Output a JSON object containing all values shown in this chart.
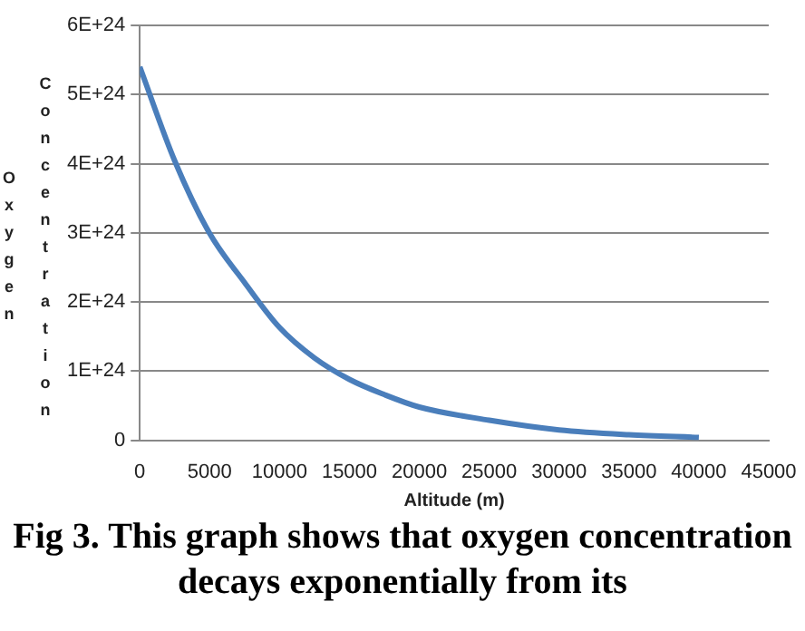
{
  "chart_data": {
    "type": "line",
    "xlabel": "Altitude (m)",
    "ylabel": "Oxygen Concentration",
    "x": [
      0,
      2500,
      5000,
      7500,
      10000,
      12500,
      15000,
      17500,
      20000,
      25000,
      30000,
      35000,
      40000
    ],
    "series": [
      {
        "color": "#4a7ebb",
        "values": [
          5.4e+24,
          4.04e+24,
          2.99e+24,
          2.28e+24,
          1.63e+24,
          1.19e+24,
          8.8e+23,
          6.6e+23,
          4.8e+23,
          2.9e+23,
          1.5e+23,
          8e+22,
          4e+22
        ]
      }
    ],
    "xlim": [
      0,
      45000
    ],
    "xticks": [
      0,
      5000,
      10000,
      15000,
      20000,
      25000,
      30000,
      35000,
      40000,
      45000
    ],
    "ylim": [
      0,
      6e+24
    ],
    "yticks": [
      0,
      {
        "value": 1e+24,
        "label": "1E+24"
      },
      {
        "value": 2e+24,
        "label": "2E+24"
      },
      {
        "value": 3e+24,
        "label": "3E+24"
      },
      {
        "value": 4e+24,
        "label": "4E+24"
      },
      {
        "value": 5e+24,
        "label": "5E+24"
      },
      {
        "value": 6e+24,
        "label": "6E+24"
      }
    ],
    "grid": "y",
    "legend": false,
    "marker": "none",
    "line_style": "solid",
    "annotations": [
      "Fig 3. This graph shows that oxygen concentration decays exponentially from its"
    ]
  }
}
